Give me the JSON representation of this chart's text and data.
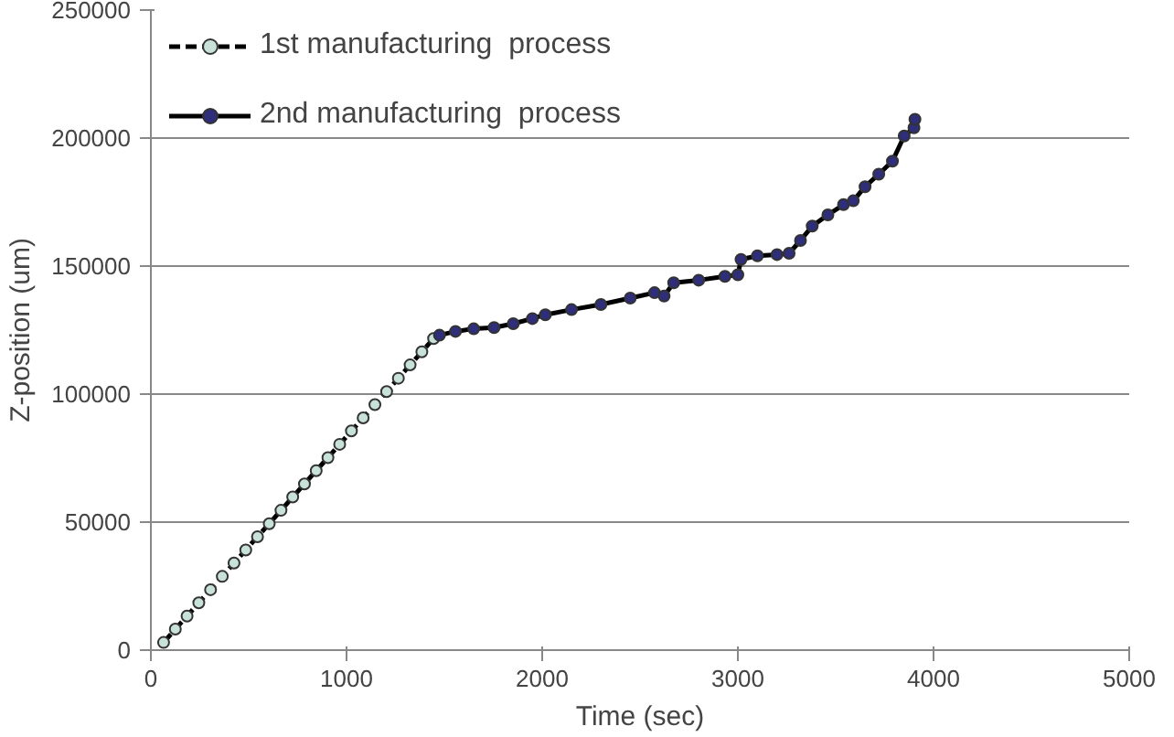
{
  "chart_data": {
    "type": "line",
    "xlabel": "Time (sec)",
    "ylabel": "Z-position (um)",
    "xlim": [
      0,
      5000
    ],
    "xticks": [
      0,
      1000,
      2000,
      3000,
      4000,
      5000
    ],
    "ylim": [
      0,
      250000
    ],
    "yticks": [
      0,
      50000,
      100000,
      150000,
      200000,
      250000
    ],
    "grid": "y",
    "legend": "top left",
    "marker": "circle",
    "series": [
      {
        "name": "1st manufacturing  process",
        "color": "#c8e2da",
        "line_style": "dashed",
        "x": [
          65,
          125,
          185,
          245,
          305,
          365,
          425,
          485,
          545,
          605,
          665,
          725,
          785,
          845,
          905,
          965,
          1025,
          1085,
          1145,
          1205,
          1265,
          1325,
          1385,
          1445
        ],
        "values": [
          3000,
          8200,
          13300,
          18500,
          23600,
          28800,
          34000,
          39100,
          44300,
          49400,
          54600,
          59800,
          64900,
          70100,
          75200,
          80400,
          85600,
          90700,
          95900,
          101000,
          106200,
          111400,
          116500,
          121700
        ]
      },
      {
        "name": "2nd manufacturing  process",
        "color": "#2e2e7a",
        "line_style": "solid",
        "x": [
          1475,
          1557,
          1650,
          1754,
          1852,
          1950,
          2016,
          2150,
          2300,
          2450,
          2574,
          2623,
          2672,
          2800,
          2934,
          3000,
          3016,
          3100,
          3200,
          3262,
          3320,
          3380,
          3460,
          3540,
          3590,
          3650,
          3720,
          3790,
          3850,
          3900,
          3905
        ],
        "values": [
          123000,
          124500,
          125500,
          126000,
          127500,
          129500,
          131000,
          133000,
          135000,
          137500,
          139600,
          138300,
          143500,
          144500,
          146000,
          146600,
          152600,
          154000,
          154500,
          155000,
          160000,
          165600,
          170000,
          174000,
          175500,
          181000,
          185900,
          191000,
          200800,
          204000,
          207300
        ]
      }
    ]
  }
}
